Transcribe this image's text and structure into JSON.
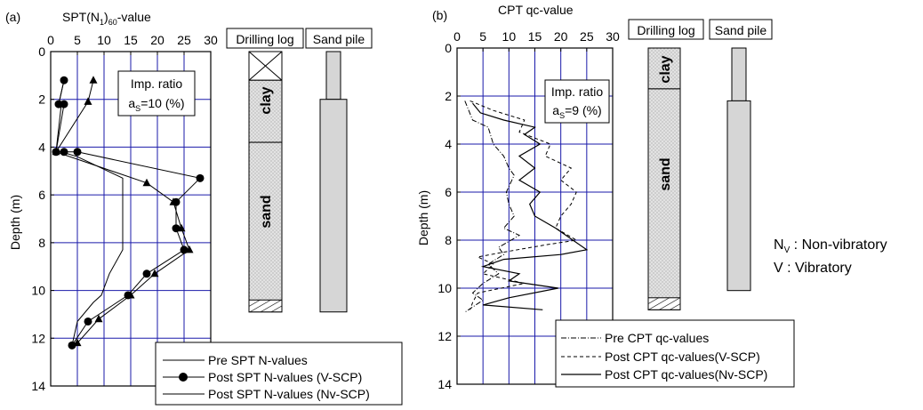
{
  "legend_note": {
    "nv": {
      "sym": "N",
      "sub": "V",
      "text": " : Non-vibratory"
    },
    "v": "V : Vibratory"
  },
  "chart_data": [
    {
      "panel": "(a)",
      "type": "line",
      "title": {
        "main": "SPT(N",
        "sub": "1",
        "after": ")",
        "sub2": "60",
        "end": "-value"
      },
      "ylabel": "Depth (m)",
      "xlim": [
        0,
        30
      ],
      "ylim": [
        0,
        14
      ],
      "xticks": [
        0,
        5,
        10,
        15,
        20,
        25,
        30
      ],
      "yticks": [
        0,
        2,
        4,
        6,
        8,
        10,
        12,
        14
      ],
      "grid": true,
      "annotation": {
        "line1": "Imp. ratio",
        "sym": "a",
        "sub": "S",
        "line2": "=10 (%)"
      },
      "legend_position": "bottom-right",
      "series": [
        {
          "name": "Pre SPT N-values",
          "marker": "none",
          "points": [
            [
              2.5,
              1.2
            ],
            [
              1.5,
              2.2
            ],
            [
              2,
              2.2
            ],
            [
              1,
              4.2
            ],
            [
              2,
              4.2
            ],
            [
              5,
              4.4
            ],
            [
              13.5,
              5.3
            ],
            [
              13.5,
              6.3
            ],
            [
              13.5,
              7.4
            ],
            [
              13.5,
              8.3
            ],
            [
              11,
              9.3
            ],
            [
              9.5,
              10.2
            ],
            [
              8,
              10.5
            ],
            [
              5,
              11.3
            ],
            [
              4,
              12.3
            ]
          ]
        },
        {
          "name": "Post SPT N-values (V-SCP)",
          "marker": "circle",
          "points": [
            [
              2.5,
              1.2
            ],
            [
              1.5,
              2.2
            ],
            [
              2.5,
              2.2
            ],
            [
              1,
              4.2
            ],
            [
              2.5,
              4.2
            ],
            [
              5,
              4.2
            ],
            [
              28,
              5.3
            ],
            [
              23.5,
              6.3
            ],
            [
              23.5,
              7.4
            ],
            [
              25,
              8.3
            ],
            [
              18,
              9.3
            ],
            [
              14.5,
              10.2
            ],
            [
              7,
              11.3
            ],
            [
              4,
              12.3
            ]
          ]
        },
        {
          "name": "Post SPT N-values (Nv-SCP)",
          "marker": "triangle",
          "points": [
            [
              8,
              1.2
            ],
            [
              7,
              2.1
            ],
            [
              1,
              4.2
            ],
            [
              18,
              5.5
            ],
            [
              23,
              6.3
            ],
            [
              24.5,
              7.4
            ],
            [
              26,
              8.3
            ],
            [
              19.5,
              9.3
            ],
            [
              15,
              10.2
            ],
            [
              9,
              11.2
            ],
            [
              5,
              12.2
            ]
          ]
        }
      ],
      "drilling_log": {
        "title": "Drilling log",
        "layers": [
          {
            "label": "clay",
            "from": 1.2,
            "to": 3.8
          },
          {
            "label": "sand",
            "from": 3.8,
            "to": 10.9
          }
        ]
      },
      "sand_pile": {
        "title": "Sand pile",
        "narrow": [
          0,
          2.0
        ],
        "wide": [
          2.0,
          10.9
        ]
      }
    },
    {
      "panel": "(b)",
      "type": "line",
      "title": "CPT qc-value",
      "ylabel": "Depth (m)",
      "xlim": [
        0,
        30
      ],
      "ylim": [
        0,
        14
      ],
      "xticks": [
        0,
        5,
        10,
        15,
        20,
        25,
        30
      ],
      "yticks": [
        0,
        2,
        4,
        6,
        8,
        10,
        12,
        14
      ],
      "grid": true,
      "annotation": {
        "line1": "Imp. ratio",
        "sym": "a",
        "sub": "S",
        "line2": "=9 (%)"
      },
      "legend_position": "bottom-right",
      "series": [
        {
          "name": "Pre CPT qc-values",
          "style": "dashdot",
          "points": [
            [
              1.5,
              2.2
            ],
            [
              3,
              3
            ],
            [
              6,
              3.3
            ],
            [
              7,
              4
            ],
            [
              9,
              4.5
            ],
            [
              10,
              5
            ],
            [
              11,
              5.3
            ],
            [
              9.5,
              6
            ],
            [
              10,
              6.5
            ],
            [
              11,
              7
            ],
            [
              9,
              7.5
            ],
            [
              12,
              7.8
            ],
            [
              8,
              8.3
            ],
            [
              9,
              8.6
            ],
            [
              6,
              9
            ],
            [
              8,
              9.4
            ],
            [
              5,
              9.8
            ],
            [
              3,
              10.2
            ],
            [
              5,
              10.5
            ],
            [
              1.5,
              11
            ]
          ]
        },
        {
          "name": "Post CPT qc-values(V-SCP)",
          "style": "dashed",
          "points": [
            [
              2.5,
              2.2
            ],
            [
              7,
              2.6
            ],
            [
              13,
              3
            ],
            [
              12,
              3.5
            ],
            [
              18,
              4
            ],
            [
              17,
              4.5
            ],
            [
              22,
              5
            ],
            [
              20,
              5.5
            ],
            [
              23,
              6
            ],
            [
              22,
              6.5
            ],
            [
              20,
              7
            ],
            [
              19,
              7.5
            ],
            [
              23,
              8
            ],
            [
              17,
              8.2
            ],
            [
              9,
              8.5
            ],
            [
              4,
              8.7
            ],
            [
              7,
              9
            ],
            [
              5,
              9.4
            ],
            [
              13,
              9.8
            ],
            [
              4,
              10.2
            ],
            [
              3,
              10.6
            ],
            [
              2.5,
              10.9
            ]
          ]
        },
        {
          "name": "Post CPT qc-values(Nv-SCP)",
          "style": "solid",
          "points": [
            [
              3,
              2.3
            ],
            [
              4.5,
              2.7
            ],
            [
              9,
              3
            ],
            [
              15,
              3.3
            ],
            [
              13,
              3.6
            ],
            [
              16,
              4
            ],
            [
              12,
              4.5
            ],
            [
              15,
              5
            ],
            [
              12,
              5.5
            ],
            [
              16,
              6
            ],
            [
              14,
              6.5
            ],
            [
              15,
              7
            ],
            [
              19,
              7.5
            ],
            [
              21,
              7.8
            ],
            [
              25,
              8.4
            ],
            [
              20,
              8.6
            ],
            [
              9,
              8.8
            ],
            [
              5,
              9.1
            ],
            [
              12,
              9.4
            ],
            [
              10,
              9.7
            ],
            [
              19.5,
              10
            ],
            [
              10,
              10.4
            ],
            [
              5,
              10.7
            ],
            [
              16.5,
              10.9
            ]
          ]
        }
      ],
      "drilling_log": {
        "title": "Drilling log",
        "layers": [
          {
            "label": "clay",
            "from": 0,
            "to": 1.7
          },
          {
            "label": "sand",
            "from": 1.7,
            "to": 10.9
          }
        ]
      },
      "sand_pile": {
        "title": "Sand pile",
        "narrow": [
          0,
          2.2
        ],
        "wide": [
          2.2,
          10.1
        ]
      }
    }
  ]
}
